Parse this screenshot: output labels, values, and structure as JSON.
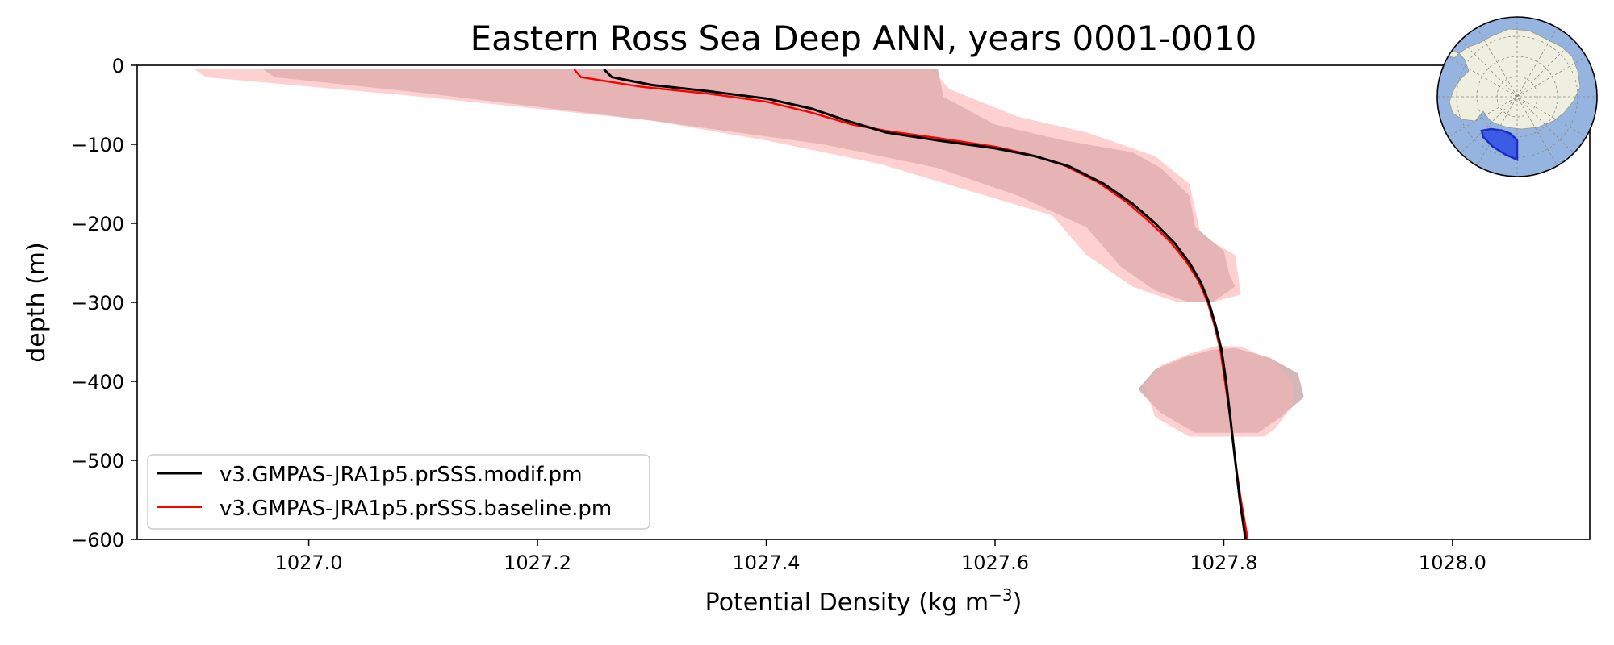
{
  "chart_data": {
    "type": "line",
    "title": "Eastern Ross Sea Deep ANN, years 0001-0010",
    "xlabel": "Potential Density (kg m",
    "xlabel_sup": "−3",
    "xlabel_end": ")",
    "ylabel": "depth (m)",
    "xlim": [
      1026.85,
      1028.12
    ],
    "ylim": [
      -600,
      0
    ],
    "xticks": [
      {
        "value": 1027.0,
        "label": "1027.0"
      },
      {
        "value": 1027.2,
        "label": "1027.2"
      },
      {
        "value": 1027.4,
        "label": "1027.4"
      },
      {
        "value": 1027.6,
        "label": "1027.6"
      },
      {
        "value": 1027.8,
        "label": "1027.8"
      },
      {
        "value": 1028.0,
        "label": "1028.0"
      }
    ],
    "yticks": [
      {
        "value": 0,
        "label": "0"
      },
      {
        "value": -100,
        "label": "−100"
      },
      {
        "value": -200,
        "label": "−200"
      },
      {
        "value": -300,
        "label": "−300"
      },
      {
        "value": -400,
        "label": "−400"
      },
      {
        "value": -500,
        "label": "−500"
      },
      {
        "value": -600,
        "label": "−600"
      }
    ],
    "grid": false,
    "legend_position": "lower-left",
    "series": [
      {
        "name": "v3.GMPAS-JRA1p5.prSSS.modif.pm",
        "color": "#000000",
        "points": [
          [
            1027.258,
            -5
          ],
          [
            1027.265,
            -15
          ],
          [
            1027.3,
            -25
          ],
          [
            1027.35,
            -33
          ],
          [
            1027.4,
            -42
          ],
          [
            1027.44,
            -55
          ],
          [
            1027.47,
            -70
          ],
          [
            1027.505,
            -85
          ],
          [
            1027.55,
            -95
          ],
          [
            1027.6,
            -105
          ],
          [
            1027.635,
            -115
          ],
          [
            1027.665,
            -128
          ],
          [
            1027.695,
            -150
          ],
          [
            1027.72,
            -175
          ],
          [
            1027.74,
            -200
          ],
          [
            1027.757,
            -225
          ],
          [
            1027.77,
            -250
          ],
          [
            1027.78,
            -275
          ],
          [
            1027.787,
            -300
          ],
          [
            1027.793,
            -330
          ],
          [
            1027.798,
            -360
          ],
          [
            1027.802,
            -400
          ],
          [
            1027.806,
            -450
          ],
          [
            1027.81,
            -500
          ],
          [
            1027.814,
            -550
          ],
          [
            1027.819,
            -600
          ]
        ]
      },
      {
        "name": "v3.GMPAS-JRA1p5.prSSS.baseline.pm",
        "color": "#ff0000",
        "points": [
          [
            1027.232,
            -5
          ],
          [
            1027.238,
            -15
          ],
          [
            1027.29,
            -27
          ],
          [
            1027.35,
            -36
          ],
          [
            1027.4,
            -46
          ],
          [
            1027.44,
            -60
          ],
          [
            1027.475,
            -75
          ],
          [
            1027.505,
            -83
          ],
          [
            1027.55,
            -92
          ],
          [
            1027.6,
            -103
          ],
          [
            1027.63,
            -113
          ],
          [
            1027.66,
            -126
          ],
          [
            1027.69,
            -148
          ],
          [
            1027.715,
            -173
          ],
          [
            1027.735,
            -198
          ],
          [
            1027.753,
            -223
          ],
          [
            1027.767,
            -248
          ],
          [
            1027.778,
            -273
          ],
          [
            1027.786,
            -300
          ],
          [
            1027.792,
            -330
          ],
          [
            1027.797,
            -360
          ],
          [
            1027.801,
            -400
          ],
          [
            1027.806,
            -450
          ],
          [
            1027.81,
            -500
          ],
          [
            1027.815,
            -550
          ],
          [
            1027.821,
            -600
          ]
        ]
      }
    ],
    "bands": [
      {
        "name_ref": "modif",
        "color": "#c8c8c8",
        "polygon": [
          [
            1026.96,
            -5
          ],
          [
            1027.55,
            -5
          ],
          [
            1027.555,
            -40
          ],
          [
            1027.6,
            -75
          ],
          [
            1027.66,
            -95
          ],
          [
            1027.72,
            -110
          ],
          [
            1027.745,
            -130
          ],
          [
            1027.77,
            -165
          ],
          [
            1027.775,
            -205
          ],
          [
            1027.8,
            -235
          ],
          [
            1027.805,
            -265
          ],
          [
            1027.81,
            -280
          ],
          [
            1027.79,
            -300
          ],
          [
            1027.77,
            -300
          ],
          [
            1027.74,
            -285
          ],
          [
            1027.71,
            -255
          ],
          [
            1027.68,
            -205
          ],
          [
            1027.62,
            -165
          ],
          [
            1027.55,
            -130
          ],
          [
            1027.45,
            -100
          ],
          [
            1027.3,
            -70
          ],
          [
            1027.1,
            -35
          ],
          [
            1026.97,
            -15
          ]
        ]
      },
      {
        "name_ref": "baseline",
        "color": "#ffc8c8",
        "polygon": [
          [
            1026.9,
            -5
          ],
          [
            1027.545,
            -5
          ],
          [
            1027.56,
            -30
          ],
          [
            1027.62,
            -65
          ],
          [
            1027.68,
            -85
          ],
          [
            1027.74,
            -115
          ],
          [
            1027.77,
            -150
          ],
          [
            1027.78,
            -215
          ],
          [
            1027.81,
            -240
          ],
          [
            1027.815,
            -290
          ],
          [
            1027.79,
            -300
          ],
          [
            1027.76,
            -300
          ],
          [
            1027.72,
            -280
          ],
          [
            1027.68,
            -240
          ],
          [
            1027.65,
            -190
          ],
          [
            1027.58,
            -160
          ],
          [
            1027.5,
            -125
          ],
          [
            1027.4,
            -95
          ],
          [
            1027.3,
            -70
          ],
          [
            1027.1,
            -40
          ],
          [
            1026.91,
            -15
          ]
        ]
      },
      {
        "name_ref": "modif",
        "color": "#c8c8c8",
        "polygon": [
          [
            1027.725,
            -410
          ],
          [
            1027.74,
            -385
          ],
          [
            1027.765,
            -370
          ],
          [
            1027.79,
            -360
          ],
          [
            1027.81,
            -358
          ],
          [
            1027.84,
            -370
          ],
          [
            1027.865,
            -390
          ],
          [
            1027.87,
            -420
          ],
          [
            1027.85,
            -445
          ],
          [
            1027.83,
            -465
          ],
          [
            1027.775,
            -465
          ],
          [
            1027.745,
            -440
          ]
        ]
      },
      {
        "name_ref": "baseline",
        "color": "#ffc8c8",
        "polygon": [
          [
            1027.73,
            -405
          ],
          [
            1027.745,
            -380
          ],
          [
            1027.77,
            -365
          ],
          [
            1027.795,
            -355
          ],
          [
            1027.815,
            -356
          ],
          [
            1027.845,
            -375
          ],
          [
            1027.86,
            -400
          ],
          [
            1027.86,
            -430
          ],
          [
            1027.845,
            -460
          ],
          [
            1027.835,
            -470
          ],
          [
            1027.77,
            -470
          ],
          [
            1027.74,
            -445
          ]
        ]
      }
    ],
    "overlap_color": "#d7a3a3"
  },
  "inset_map": {
    "name": "antarctica-region-map",
    "ocean_color": "#95b4e0",
    "land_color": "#efefdf",
    "region_color": "#1f3fe8",
    "border_color": "#000000"
  }
}
